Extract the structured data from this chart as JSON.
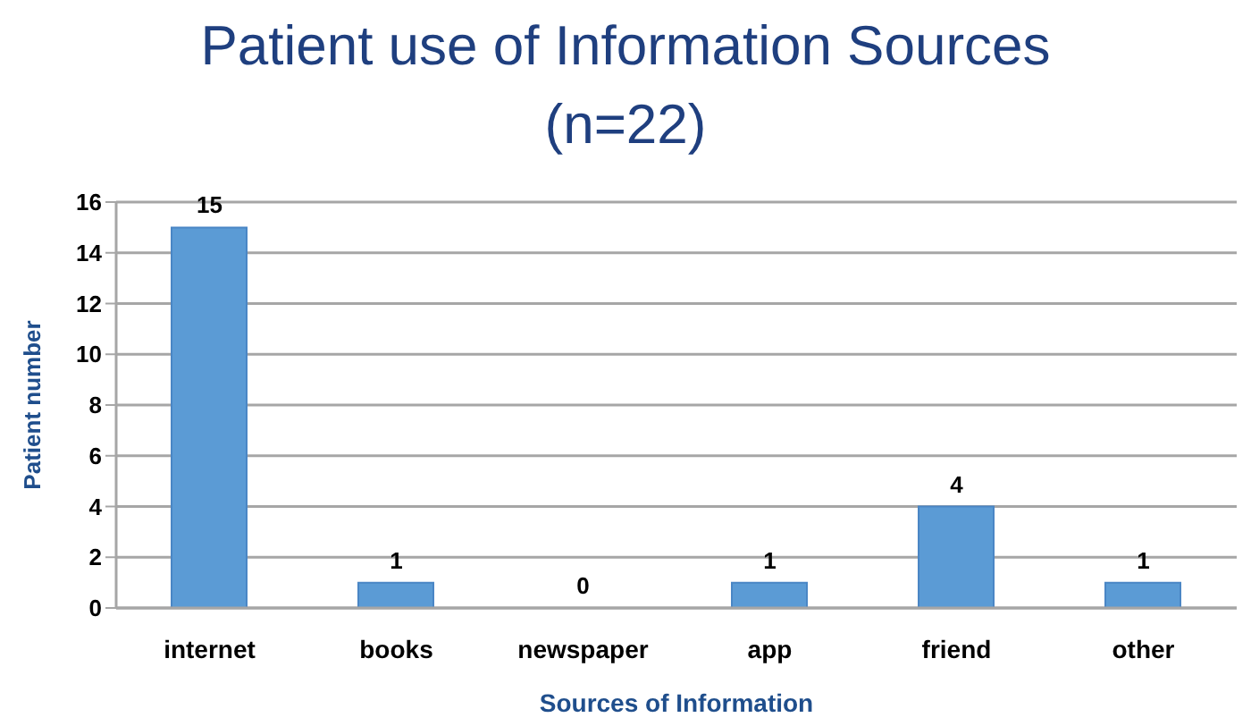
{
  "chart_data": {
    "type": "bar",
    "title": "Patient use of Information Sources (n=22)",
    "xlabel": "Sources of Information",
    "ylabel": "Patient number",
    "categories": [
      "internet",
      "books",
      "newspaper",
      "app",
      "friend",
      "other"
    ],
    "values": [
      15,
      1,
      0,
      1,
      4,
      1
    ],
    "color": "#5b9bd5",
    "ylim": [
      0,
      16
    ],
    "yticks": [
      0,
      2,
      4,
      6,
      8,
      10,
      12,
      14,
      16
    ],
    "grid": "y",
    "data_labels": true
  }
}
